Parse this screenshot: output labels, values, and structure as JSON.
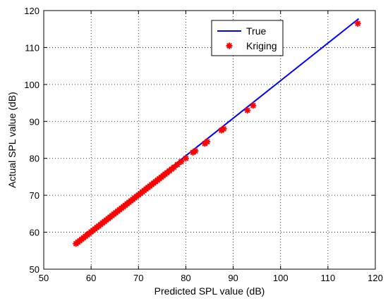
{
  "chart_data": {
    "type": "scatter",
    "title": "",
    "xlabel": "Predicted SPL value (dB)",
    "ylabel": "Actual SPL value (dB)",
    "xlim": [
      50,
      120
    ],
    "ylim": [
      50,
      120
    ],
    "xticks": [
      50,
      60,
      70,
      80,
      90,
      100,
      110,
      120
    ],
    "yticks": [
      50,
      60,
      70,
      80,
      90,
      100,
      110,
      120
    ],
    "grid": true,
    "legend_position": "top-right",
    "series": [
      {
        "name": "True",
        "kind": "line",
        "color": "#0000ff",
        "x": [
          56.5,
          116.5
        ],
        "y": [
          56.8,
          117.8
        ]
      },
      {
        "name": "Kriging",
        "kind": "markers",
        "marker": "star",
        "color": "#ff0000",
        "x": [
          56.8,
          57.2,
          57.6,
          58.0,
          58.4,
          58.8,
          59.2,
          59.6,
          60.0,
          60.4,
          60.8,
          61.2,
          61.6,
          62.0,
          62.4,
          62.8,
          63.2,
          63.6,
          64.0,
          64.4,
          64.8,
          65.2,
          65.6,
          66.0,
          66.4,
          66.8,
          67.2,
          67.6,
          68.0,
          68.4,
          68.8,
          69.2,
          69.6,
          70.0,
          70.4,
          70.8,
          71.2,
          71.6,
          72.0,
          72.4,
          72.8,
          73.2,
          73.6,
          74.0,
          74.4,
          74.8,
          75.2,
          75.6,
          76.0,
          76.5,
          77.0,
          77.5,
          78.2,
          79.0,
          80.0,
          81.5,
          82.0,
          84.0,
          84.5,
          87.5,
          88.0,
          93.0,
          94.2,
          116.3
        ],
        "y": [
          56.9,
          57.3,
          57.7,
          58.1,
          58.5,
          58.9,
          59.3,
          59.7,
          60.1,
          60.5,
          60.9,
          61.3,
          61.7,
          62.1,
          62.5,
          62.9,
          63.3,
          63.7,
          64.1,
          64.5,
          64.9,
          65.3,
          65.7,
          66.1,
          66.5,
          66.9,
          67.3,
          67.7,
          68.1,
          68.5,
          68.9,
          69.3,
          69.7,
          70.1,
          70.5,
          70.9,
          71.3,
          71.7,
          72.1,
          72.5,
          72.9,
          73.3,
          73.7,
          74.1,
          74.5,
          74.9,
          75.3,
          75.7,
          76.1,
          76.6,
          77.1,
          77.6,
          78.3,
          79.1,
          80.0,
          81.6,
          82.0,
          84.0,
          84.5,
          87.6,
          88.0,
          93.0,
          94.3,
          116.5
        ]
      }
    ]
  }
}
